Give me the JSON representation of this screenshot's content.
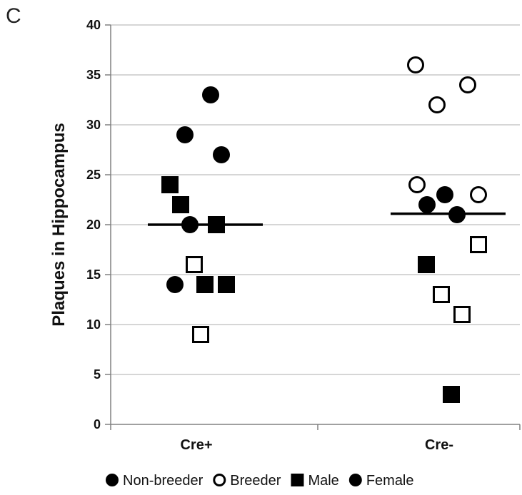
{
  "panel_label": "C",
  "chart_data": {
    "type": "scatter",
    "title": "",
    "xlabel": "",
    "ylabel": "Plaques in Hippocampus",
    "ylim": [
      0,
      40
    ],
    "yticks": [
      0,
      5,
      10,
      15,
      20,
      25,
      30,
      35,
      40
    ],
    "categories": [
      "Cre+",
      "Cre-"
    ],
    "grid": true,
    "legend_position": "bottom",
    "legend": [
      {
        "label": "Non-breeder",
        "marker": "filled-circle"
      },
      {
        "label": "Breeder",
        "marker": "open-circle"
      },
      {
        "label": "Male",
        "marker": "filled-square"
      },
      {
        "label": "Female",
        "marker": "filled-circle"
      }
    ],
    "points": [
      {
        "category": "Cre+",
        "value": 33,
        "marker": "filled-circle"
      },
      {
        "category": "Cre+",
        "value": 29,
        "marker": "filled-circle"
      },
      {
        "category": "Cre+",
        "value": 27,
        "marker": "filled-circle"
      },
      {
        "category": "Cre+",
        "value": 24,
        "marker": "filled-square"
      },
      {
        "category": "Cre+",
        "value": 22,
        "marker": "filled-square"
      },
      {
        "category": "Cre+",
        "value": 20,
        "marker": "filled-circle"
      },
      {
        "category": "Cre+",
        "value": 20,
        "marker": "filled-square"
      },
      {
        "category": "Cre+",
        "value": 16,
        "marker": "open-square"
      },
      {
        "category": "Cre+",
        "value": 14,
        "marker": "filled-circle"
      },
      {
        "category": "Cre+",
        "value": 14,
        "marker": "filled-square"
      },
      {
        "category": "Cre+",
        "value": 14,
        "marker": "filled-square"
      },
      {
        "category": "Cre+",
        "value": 9,
        "marker": "open-square"
      },
      {
        "category": "Cre-",
        "value": 36,
        "marker": "open-circle"
      },
      {
        "category": "Cre-",
        "value": 34,
        "marker": "open-circle"
      },
      {
        "category": "Cre-",
        "value": 32,
        "marker": "open-circle"
      },
      {
        "category": "Cre-",
        "value": 24,
        "marker": "open-circle"
      },
      {
        "category": "Cre-",
        "value": 23,
        "marker": "filled-circle"
      },
      {
        "category": "Cre-",
        "value": 23,
        "marker": "open-circle"
      },
      {
        "category": "Cre-",
        "value": 22,
        "marker": "filled-circle"
      },
      {
        "category": "Cre-",
        "value": 21,
        "marker": "filled-circle"
      },
      {
        "category": "Cre-",
        "value": 18,
        "marker": "open-square"
      },
      {
        "category": "Cre-",
        "value": 16,
        "marker": "filled-square"
      },
      {
        "category": "Cre-",
        "value": 13,
        "marker": "open-square"
      },
      {
        "category": "Cre-",
        "value": 11,
        "marker": "open-square"
      },
      {
        "category": "Cre-",
        "value": 3,
        "marker": "filled-square"
      }
    ],
    "means": [
      {
        "category": "Cre+",
        "value": 20
      },
      {
        "category": "Cre-",
        "value": 21.1
      }
    ],
    "colors": {
      "marker": "#000000",
      "grid": "#c8c8c8",
      "axis": "#808080"
    }
  }
}
